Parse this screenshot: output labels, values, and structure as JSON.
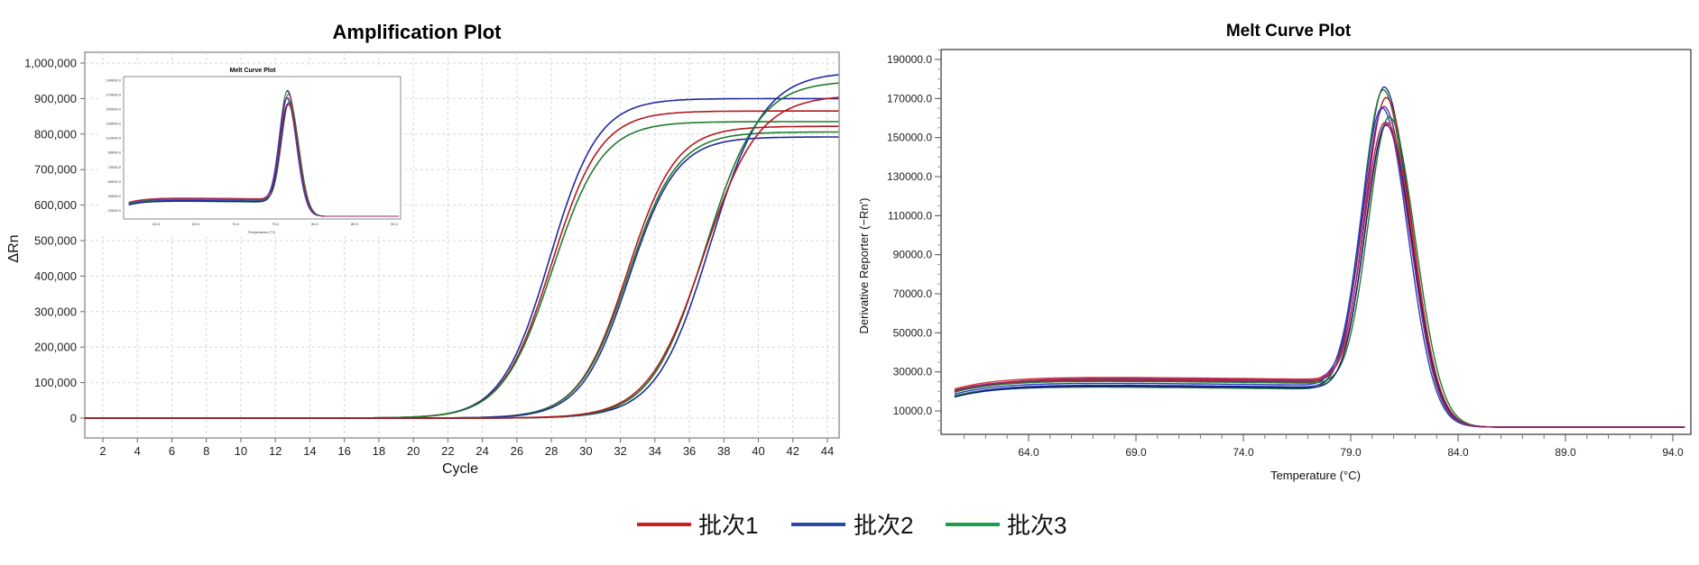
{
  "chart_data": [
    {
      "type": "line",
      "title": "Amplification Plot",
      "xlabel": "Cycle",
      "ylabel": "ΔRn",
      "xlim": [
        0.95,
        44.66
      ],
      "ylim": [
        -55000,
        1032000
      ],
      "grid": true,
      "x_ticks": [
        "2",
        "4",
        "6",
        "8",
        "10",
        "12",
        "14",
        "16",
        "18",
        "20",
        "22",
        "24",
        "26",
        "28",
        "30",
        "32",
        "34",
        "36",
        "38",
        "40",
        "42",
        "44"
      ],
      "y_ticks": [
        "0",
        "100,000",
        "200,000",
        "300,000",
        "400,000",
        "500,000",
        "600,000",
        "700,000",
        "800,000",
        "900,000",
        "1,000,000"
      ],
      "curve_model": "logistic: plateau / (1 + exp(-(cycle - midpoint) / slope))",
      "series": [
        {
          "name": "批次2",
          "color": "#1f2a9e",
          "plateau": 900000,
          "midpoint": 27.9,
          "slope": 1.4
        },
        {
          "name": "批次1",
          "color": "#b3191f",
          "plateau": 865000,
          "midpoint": 28.0,
          "slope": 1.42
        },
        {
          "name": "批次3",
          "color": "#1f7a2e",
          "plateau": 835000,
          "midpoint": 28.05,
          "slope": 1.45
        },
        {
          "name": "批次1",
          "color": "#b3191f",
          "plateau": 822000,
          "midpoint": 32.4,
          "slope": 1.4
        },
        {
          "name": "批次3",
          "color": "#1f7a2e",
          "plateau": 806000,
          "midpoint": 32.45,
          "slope": 1.42
        },
        {
          "name": "批次2",
          "color": "#1f2a9e",
          "plateau": 792000,
          "midpoint": 32.5,
          "slope": 1.38
        },
        {
          "name": "批次2",
          "color": "#1f2a9e",
          "plateau": 975000,
          "midpoint": 37.2,
          "slope": 1.55
        },
        {
          "name": "批次3",
          "color": "#1f7a2e",
          "plateau": 950000,
          "midpoint": 36.9,
          "slope": 1.55
        },
        {
          "name": "批次1",
          "color": "#b3191f",
          "plateau": 910000,
          "midpoint": 36.8,
          "slope": 1.6
        }
      ],
      "inset": {
        "title": "Melt Curve Plot",
        "xlabel": "Temperature (°C)"
      }
    },
    {
      "type": "line",
      "title": "Melt Curve Plot",
      "xlabel": "Temperature (°C)",
      "ylabel": "Derivative Reporter (−Rn')",
      "xlim": [
        59.9,
        94.8
      ],
      "ylim": [
        -2000,
        195000
      ],
      "grid": false,
      "x_ticks": [
        64.0,
        69.0,
        74.0,
        79.0,
        84.0,
        89.0,
        94.0
      ],
      "x_tick_labels": [
        "64.0",
        "69.0",
        "74.0",
        "79.0",
        "84.0",
        "89.0",
        "94.0"
      ],
      "y_ticks": [
        10000,
        30000,
        50000,
        70000,
        90000,
        110000,
        130000,
        150000,
        170000,
        190000
      ],
      "y_tick_labels": [
        "10000.0",
        "30000.0",
        "50000.0",
        "70000.0",
        "90000.0",
        "110000.0",
        "130000.0",
        "150000.0",
        "170000.0",
        "190000.0"
      ],
      "curve_model": "baseline plateau + asymmetric gaussian melt peak",
      "series": [
        {
          "color": "#1f2a9e",
          "peak": 183000,
          "tm": 80.6,
          "start": 14500,
          "plateau": 23000
        },
        {
          "color": "#1f7a2e",
          "peak": 181000,
          "tm": 80.55,
          "start": 15000,
          "plateau": 22000
        },
        {
          "color": "#b3191f",
          "peak": 179000,
          "tm": 80.7,
          "start": 17000,
          "plateau": 25500
        },
        {
          "color": "#7a1f8a",
          "peak": 174000,
          "tm": 80.6,
          "start": 16000,
          "plateau": 26500
        },
        {
          "color": "#2a3fc0",
          "peak": 172000,
          "tm": 80.5,
          "start": 15500,
          "plateau": 24000
        },
        {
          "color": "#1f7a2e",
          "peak": 170000,
          "tm": 80.85,
          "start": 16500,
          "plateau": 25000
        },
        {
          "color": "#d23a3a",
          "peak": 167000,
          "tm": 80.75,
          "start": 18000,
          "plateau": 27000
        },
        {
          "color": "#0e1a7a",
          "peak": 164000,
          "tm": 80.7,
          "start": 14000,
          "plateau": 22500
        },
        {
          "color": "#9a2a6a",
          "peak": 166000,
          "tm": 80.65,
          "start": 17500,
          "plateau": 26000
        }
      ]
    }
  ],
  "legend": [
    {
      "label": "批次1",
      "color": "#d41c1c"
    },
    {
      "label": "批次2",
      "color": "#2b4aa8"
    },
    {
      "label": "批次3",
      "color": "#1aa04a"
    }
  ]
}
